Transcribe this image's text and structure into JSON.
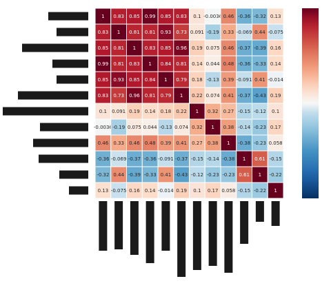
{
  "chart_data": {
    "type": "heatmap",
    "title": "",
    "row_labels": [
      "",
      "",
      "",
      "",
      "",
      "",
      "",
      "",
      "",
      "",
      "",
      ""
    ],
    "col_labels": [
      "",
      "",
      "",
      "",
      "",
      "",
      "",
      "",
      "",
      "",
      "",
      ""
    ],
    "values": [
      [
        1,
        0.83,
        0.85,
        0.99,
        0.85,
        0.83,
        0.1,
        -0.0036,
        0.46,
        -0.36,
        -0.32,
        0.13
      ],
      [
        0.83,
        1,
        0.81,
        0.81,
        0.93,
        0.73,
        0.091,
        -0.19,
        0.33,
        -0.069,
        0.44,
        -0.075
      ],
      [
        0.85,
        0.81,
        1,
        0.83,
        0.85,
        0.96,
        0.19,
        0.075,
        0.46,
        -0.37,
        -0.39,
        0.16
      ],
      [
        0.99,
        0.81,
        0.83,
        1,
        0.84,
        0.81,
        0.14,
        0.044,
        0.48,
        -0.36,
        -0.33,
        0.14
      ],
      [
        0.85,
        0.93,
        0.85,
        0.84,
        1,
        0.79,
        0.18,
        -0.13,
        0.39,
        -0.091,
        0.41,
        -0.014
      ],
      [
        0.83,
        0.73,
        0.96,
        0.81,
        0.79,
        1,
        0.22,
        0.074,
        0.41,
        -0.37,
        -0.43,
        0.19
      ],
      [
        0.1,
        0.091,
        0.19,
        0.14,
        0.18,
        0.22,
        1,
        0.32,
        0.27,
        -0.15,
        -0.12,
        0.1
      ],
      [
        -0.0036,
        -0.19,
        0.075,
        0.044,
        -0.13,
        0.074,
        0.32,
        1,
        0.38,
        -0.14,
        -0.23,
        0.17
      ],
      [
        0.46,
        0.33,
        0.46,
        0.48,
        0.39,
        0.41,
        0.27,
        0.38,
        1,
        -0.38,
        -0.23,
        0.058
      ],
      [
        -0.36,
        -0.069,
        -0.37,
        -0.36,
        -0.091,
        -0.37,
        -0.15,
        -0.14,
        -0.38,
        1,
        0.61,
        -0.15
      ],
      [
        -0.32,
        0.44,
        -0.39,
        -0.33,
        0.41,
        -0.43,
        -0.12,
        -0.23,
        -0.23,
        0.61,
        1,
        -0.22
      ],
      [
        0.13,
        -0.075,
        0.16,
        0.14,
        -0.014,
        0.19,
        0.1,
        0.17,
        0.058,
        -0.15,
        -0.22,
        1
      ]
    ],
    "value_labels": [
      [
        "1",
        "0.83",
        "0.85",
        "0.99",
        "0.85",
        "0.83",
        "0.1",
        "-0.0036",
        "0.46",
        "-0.36",
        "-0.32",
        "0.13"
      ],
      [
        "0.83",
        "1",
        "0.81",
        "0.81",
        "0.93",
        "0.73",
        "0.091",
        "-0.19",
        "0.33",
        "-0.069",
        "0.44",
        "-0.075"
      ],
      [
        "0.85",
        "0.81",
        "1",
        "0.83",
        "0.85",
        "0.96",
        "0.19",
        "0.075",
        "0.46",
        "-0.37",
        "-0.39",
        "0.16"
      ],
      [
        "0.99",
        "0.81",
        "0.83",
        "1",
        "0.84",
        "0.81",
        "0.14",
        "0.044",
        "0.48",
        "-0.36",
        "-0.33",
        "0.14"
      ],
      [
        "0.85",
        "0.93",
        "0.85",
        "0.84",
        "1",
        "0.79",
        "0.18",
        "-0.13",
        "0.39",
        "-0.091",
        "0.41",
        "-0.014"
      ],
      [
        "0.83",
        "0.73",
        "0.96",
        "0.81",
        "0.79",
        "1",
        "0.22",
        "0.074",
        "0.41",
        "-0.37",
        "-0.43",
        "0.19"
      ],
      [
        "0.1",
        "0.091",
        "0.19",
        "0.14",
        "0.18",
        "0.22",
        "1",
        "0.32",
        "0.27",
        "-0.15",
        "-0.12",
        "0.1"
      ],
      [
        "-0.0036",
        "-0.19",
        "0.075",
        "0.044",
        "-0.13",
        "0.074",
        "0.32",
        "1",
        "0.38",
        "-0.14",
        "-0.23",
        "0.17"
      ],
      [
        "0.46",
        "0.33",
        "0.46",
        "0.48",
        "0.39",
        "0.41",
        "0.27",
        "0.38",
        "1",
        "-0.38",
        "-0.23",
        "0.058"
      ],
      [
        "-0.36",
        "-0.069",
        "-0.37",
        "-0.36",
        "-0.091",
        "-0.37",
        "-0.15",
        "-0.14",
        "-0.38",
        "1",
        "0.61",
        "-0.15"
      ],
      [
        "-0.32",
        "0.44",
        "-0.39",
        "-0.33",
        "0.41",
        "-0.43",
        "-0.12",
        "-0.23",
        "-0.23",
        "0.61",
        "1",
        "-0.22"
      ],
      [
        "0.13",
        "-0.075",
        "0.16",
        "0.14",
        "-0.014",
        "0.19",
        "0.1",
        "0.17",
        "0.058",
        "-0.15",
        "-0.22",
        "1"
      ]
    ],
    "vmin": -1,
    "vmax": 1,
    "colormap": "RdBu_r",
    "colorbar": {
      "ticks": [],
      "tick_labels": []
    },
    "grid": false,
    "cell_borders": true,
    "annotations_on": true
  }
}
